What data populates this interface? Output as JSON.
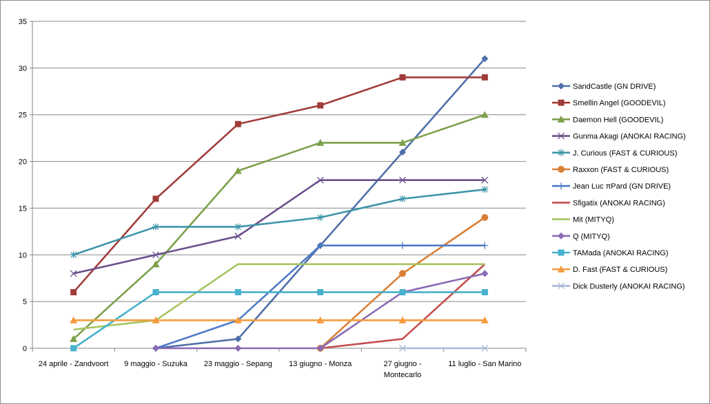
{
  "chart_data": {
    "type": "line",
    "title": "",
    "xlabel": "",
    "ylabel": "",
    "ylim": [
      0,
      35
    ],
    "yticks": [
      0,
      5,
      10,
      15,
      20,
      25,
      30,
      35
    ],
    "grid": "horizontal",
    "legend_position": "right",
    "categories": [
      [
        "24 aprile - Zandvoort"
      ],
      [
        "9 maggio - Suzuka"
      ],
      [
        "23 maggio - Sepang"
      ],
      [
        "13 giugno - Monza"
      ],
      [
        "27 giugno -",
        "Montecarlo"
      ],
      [
        "11 luglio - San Marino"
      ]
    ],
    "series": [
      {
        "name": "SandCastle (GN DRIVE)",
        "color": "#4f6fa8",
        "marker": "diamond",
        "values": [
          null,
          0,
          1,
          11,
          21,
          31
        ]
      },
      {
        "name": "Smellin Angel (GOODEVIL)",
        "color": "#a03c3a",
        "marker": "square",
        "values": [
          6,
          16,
          24,
          26,
          29,
          29
        ]
      },
      {
        "name": "Daemon Hell (GOODEVIL)",
        "color": "#7ca04a",
        "marker": "triangle",
        "values": [
          1,
          9,
          19,
          22,
          22,
          25
        ]
      },
      {
        "name": "Gunma Akagi (ANOKAI RACING)",
        "color": "#6a4f8c",
        "marker": "x",
        "values": [
          8,
          10,
          12,
          18,
          18,
          18
        ]
      },
      {
        "name": "J. Curious (FAST & CURIOUS)",
        "color": "#3d95a8",
        "marker": "star",
        "values": [
          10,
          13,
          13,
          14,
          16,
          17
        ]
      },
      {
        "name": "Raxxon (FAST & CURIOUS)",
        "color": "#d97f35",
        "marker": "circle",
        "values": [
          null,
          null,
          null,
          0,
          8,
          14
        ]
      },
      {
        "name": "Jean Luc πPard (GN DRIVE)",
        "color": "#4f7ac8",
        "marker": "plus",
        "values": [
          null,
          0,
          3,
          11,
          11,
          11
        ]
      },
      {
        "name": "Sfigatix (ANOKAI RACING)",
        "color": "#c44d4b",
        "marker": "none",
        "values": [
          null,
          null,
          null,
          0,
          1,
          9
        ]
      },
      {
        "name": "Mit (MITYQ)",
        "color": "#a6c460",
        "marker": "none",
        "values": [
          2,
          3,
          9,
          9,
          9,
          9
        ]
      },
      {
        "name": "Q (MITYQ)",
        "color": "#8a6bb4",
        "marker": "diamond",
        "values": [
          null,
          0,
          0,
          0,
          6,
          8
        ]
      },
      {
        "name": "TAMada (ANOKAI RACING)",
        "color": "#45b1cc",
        "marker": "square",
        "values": [
          0,
          6,
          6,
          6,
          6,
          6
        ]
      },
      {
        "name": "D. Fast (FAST & CURIOUS)",
        "color": "#f59c3d",
        "marker": "triangle",
        "values": [
          3,
          3,
          3,
          3,
          3,
          3
        ]
      },
      {
        "name": "Dick Dusterly (ANOKAI RACING)",
        "color": "#a8b8d8",
        "marker": "x",
        "values": [
          null,
          null,
          null,
          null,
          0,
          0
        ]
      }
    ]
  }
}
